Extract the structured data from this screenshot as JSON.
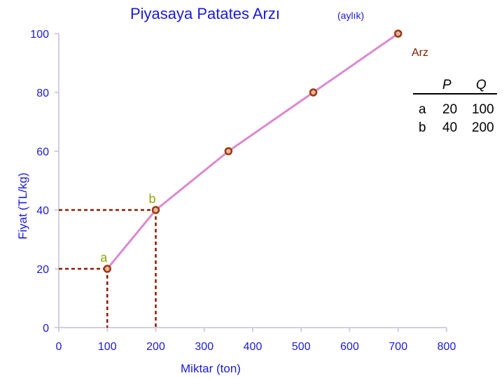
{
  "chart_data": {
    "type": "line",
    "title": "Piyasaya Patates Arzı",
    "subtitle": "(aylık)",
    "xlabel": "Miktar (ton)",
    "ylabel": "Fiyat (TL/kg)",
    "xlim": [
      0,
      800
    ],
    "ylim": [
      0,
      100
    ],
    "x_ticks": [
      "0",
      "100",
      "200",
      "300",
      "400",
      "500",
      "600",
      "700",
      "800"
    ],
    "y_ticks": [
      "0",
      "20",
      "40",
      "60",
      "80",
      "100"
    ],
    "grid": false,
    "series": [
      {
        "name": "Arz",
        "x": [
          100,
          200,
          350,
          525,
          700
        ],
        "y": [
          20,
          40,
          60,
          80,
          100
        ]
      }
    ],
    "annotations": [
      {
        "label": "a",
        "x": 100,
        "y": 20
      },
      {
        "label": "b",
        "x": 200,
        "y": 40
      }
    ],
    "table": {
      "headers": [
        "P",
        "Q"
      ],
      "rows": [
        {
          "label": "a",
          "P": "20",
          "Q": "100"
        },
        {
          "label": "b",
          "P": "40",
          "Q": "200"
        }
      ]
    },
    "colors": {
      "text": "#1a1ad8",
      "axis": "#cfcfe0",
      "line": "#d98ad0",
      "marker": "#9b3b10",
      "guide": "#8b1a00",
      "point_label": "#8aa80a",
      "series_label": "#7a1f00"
    }
  }
}
